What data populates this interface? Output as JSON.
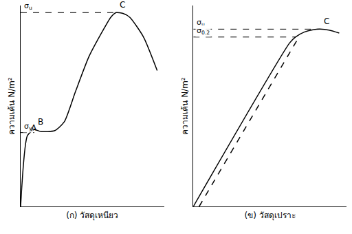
{
  "chart_data": [
    {
      "type": "line",
      "y_label": "ความเค้น N/m²",
      "x_label": "(ก) วัสดุเหนียว",
      "xlim": [
        0,
        10.5
      ],
      "ylim": [
        0,
        10.2
      ],
      "tick_labels": false,
      "grid": false,
      "series": [
        {
          "color": "#000000",
          "line_style": "solid",
          "x": [
            0,
            0.5,
            1.0,
            1.5,
            2.5,
            3.2,
            4.0,
            5.0,
            6.0,
            6.6,
            7.0,
            7.5,
            8.0,
            9.0,
            10.0
          ],
          "values": [
            0,
            3.6,
            3.9,
            3.8,
            3.85,
            4.3,
            5.8,
            7.6,
            8.9,
            9.6,
            9.84,
            9.8,
            9.6,
            8.6,
            6.9
          ]
        }
      ],
      "levels": [
        {
          "label": "σu",
          "value": 9.84,
          "x_end": 7.0
        },
        {
          "label": "σy",
          "value": 3.75,
          "x_end": 1.0
        }
      ],
      "points": [
        {
          "text": "A",
          "x": 0.5,
          "y": 3.6
        },
        {
          "text": "B",
          "x": 1.0,
          "y": 3.9
        },
        {
          "text": "C",
          "x": 7.0,
          "y": 9.84
        }
      ]
    },
    {
      "type": "line",
      "y_label": "ความเค้น N/m²",
      "x_label": "(ข) วัสดุเปราะ",
      "xlim": [
        0,
        10.5
      ],
      "ylim": [
        0,
        10.2
      ],
      "tick_labels": false,
      "grid": false,
      "series": [
        {
          "color": "#000000",
          "line_style": "solid",
          "x": [
            0,
            6.6,
            7.0,
            7.6,
            8.2,
            8.7,
            9.3,
            10.0
          ],
          "values": [
            0,
            8.3,
            8.6,
            8.85,
            8.97,
            9.0,
            8.95,
            8.8
          ]
        },
        {
          "color": "#000000",
          "line_style": "dashed",
          "x": [
            0.4,
            7.2
          ],
          "values": [
            0,
            8.55
          ]
        }
      ],
      "levels": [
        {
          "label": "σu",
          "value": 9.0,
          "x_end": 8.7
        },
        {
          "label": "σ0.2",
          "value": 8.6,
          "x_end": 7.0
        }
      ],
      "points": [
        {
          "text": "C",
          "x": 8.7,
          "y": 9.0
        }
      ]
    }
  ]
}
